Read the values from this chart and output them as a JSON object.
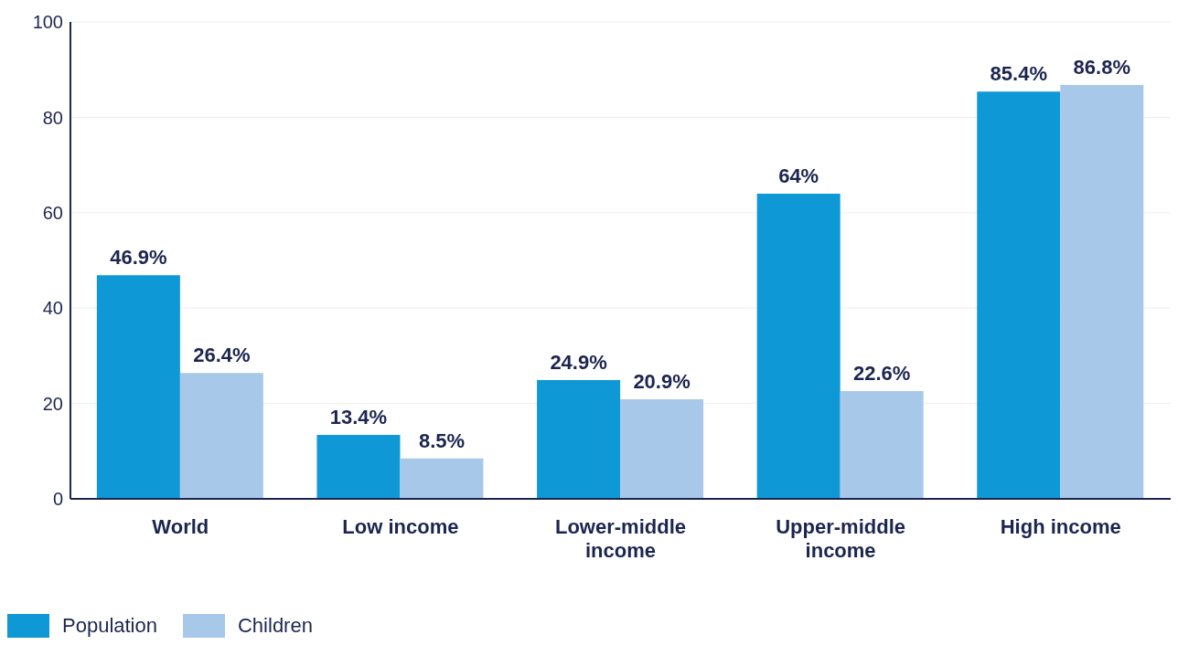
{
  "chart_data": {
    "type": "bar",
    "categories": [
      "World",
      "Low income",
      "Lower-middle income",
      "Upper-middle income",
      "High income"
    ],
    "series": [
      {
        "name": "Population",
        "color": "#0e98d5",
        "values": [
          46.9,
          13.4,
          24.9,
          64,
          85.4
        ],
        "value_labels": [
          "46.9%",
          "13.4%",
          "24.9%",
          "64%",
          "85.4%"
        ]
      },
      {
        "name": "Children",
        "color": "#a8c8ea",
        "values": [
          26.4,
          8.5,
          20.9,
          22.6,
          86.8
        ],
        "value_labels": [
          "26.4%",
          "8.5%",
          "20.9%",
          "22.6%",
          "86.8%"
        ]
      }
    ],
    "ylim": [
      0,
      100
    ],
    "yticks": [
      0,
      20,
      40,
      60,
      80,
      100
    ],
    "grid": "y",
    "legend": "bottom left"
  }
}
